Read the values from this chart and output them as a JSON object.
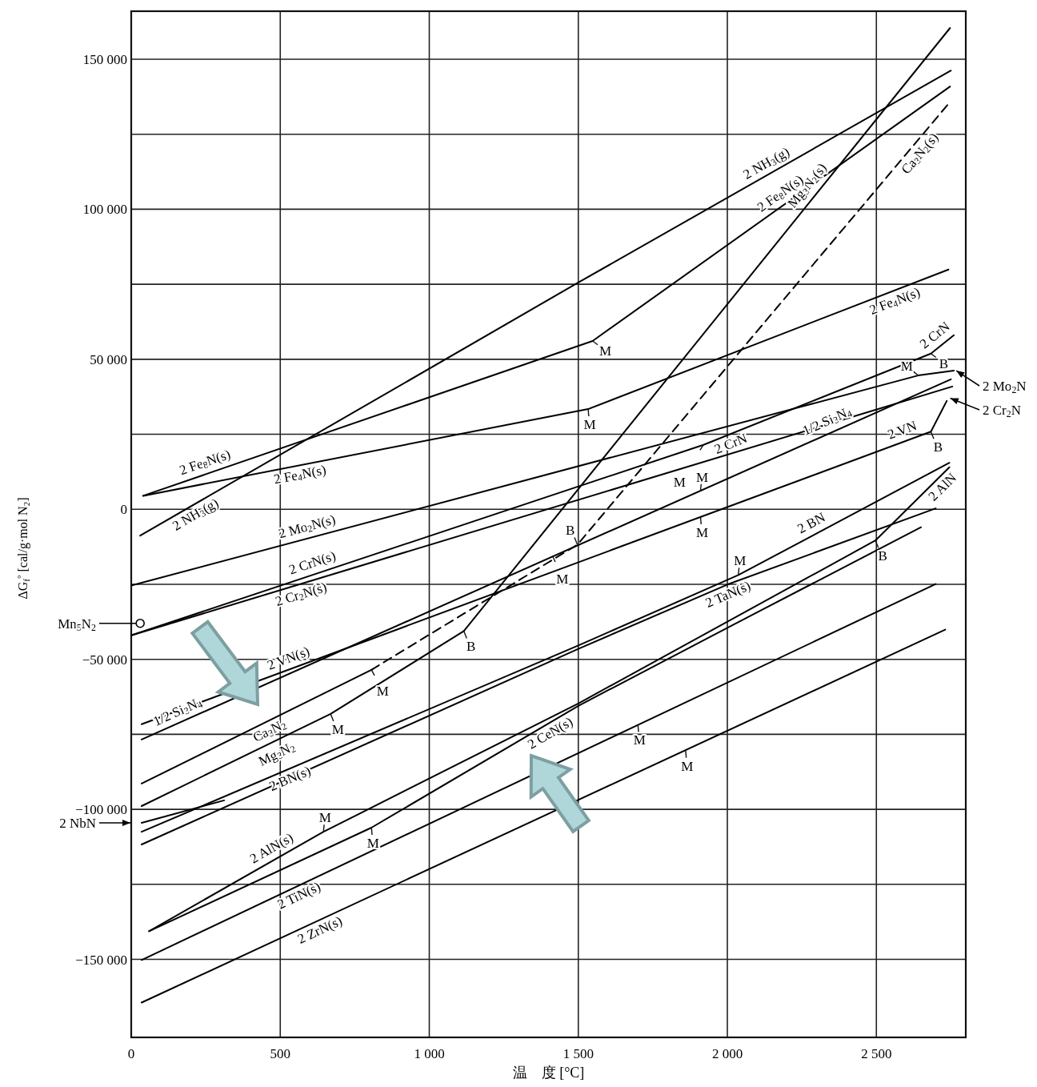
{
  "chart_data": {
    "type": "line",
    "xlabel": "温　度 [°C]",
    "ylabel": "ΔG$_{f}$$^{°}$ [cal/g·mol N$_{2}$]",
    "xlim": [
      0,
      2800
    ],
    "ylim": [
      -176000,
      166000
    ],
    "xticks": [
      0,
      500,
      {
        "value": 1000,
        "label": "1 000"
      },
      {
        "value": 1500,
        "label": "1 500"
      },
      {
        "value": 2000,
        "label": "2 000"
      },
      {
        "value": 2500,
        "label": "2 500"
      }
    ],
    "yticks": [
      {
        "value": -150000,
        "label": "−150 000"
      },
      {
        "value": -125000,
        "label": null
      },
      {
        "value": -100000,
        "label": "−100 000"
      },
      {
        "value": -75000,
        "label": null
      },
      {
        "value": -50000,
        "label": "−50 000"
      },
      {
        "value": -25000,
        "label": null
      },
      0,
      {
        "value": 25000,
        "label": null
      },
      {
        "value": 50000,
        "label": "50 000"
      },
      {
        "value": 75000,
        "label": null
      },
      {
        "value": 100000,
        "label": "100 000"
      },
      {
        "value": 125000,
        "label": null
      },
      {
        "value": 150000,
        "label": "150 000"
      }
    ],
    "grid": true,
    "legend": "left",
    "series": [
      {
        "name": "2 NH$_{3}$(g)",
        "color": "#000000",
        "x": [
          30,
          1500,
          2750
        ],
        "values": [
          -8800,
          75600,
          146200
        ]
      },
      {
        "name": "2 Fe$_{8}$N(s)",
        "color": "#000000",
        "x": [
          40,
          1548,
          2747
        ],
        "values": [
          4500,
          56100,
          140900
        ]
      },
      {
        "name": "2 Fe$_{4}$N(s)",
        "color": "#000000",
        "x": [
          40,
          1533,
          2742
        ],
        "values": [
          4500,
          33400,
          79900
        ]
      },
      {
        "name": "2 Mo$_{2}$N(s)",
        "color": "#000000",
        "x": [
          0,
          2640,
          2760
        ],
        "values": [
          -25400,
          44600,
          46200
        ]
      },
      {
        "name": "2 CrN(s)",
        "color": "#000000",
        "x": [
          0,
          1920,
          2683,
          2760
        ],
        "values": [
          -42000,
          21500,
          51900,
          58000
        ]
      },
      {
        "name": "2 Cr$_{2}$N(s)",
        "color": "#000000",
        "x": [
          0,
          2755
        ],
        "values": [
          -42000,
          40900
        ]
      },
      {
        "name": "2 VN(s)",
        "color": "#000000",
        "x": [
          35,
          2683,
          2736
        ],
        "values": [
          -71600,
          25900,
          36100
        ]
      },
      {
        "name": "1/2 Si$_{3}$N$_{4}$",
        "color": "#000000",
        "x": [
          35,
          2750
        ],
        "values": [
          -76700,
          43300
        ]
      },
      {
        "name": "Ca$_{3}$N$_{2}$",
        "color": "#000000",
        "x": [
          35,
          806
        ],
        "values": [
          -91400,
          -53500
        ]
      },
      {
        "name": "Ca$_{3}$N$_{2}$(s)",
        "color": "#000000",
        "line_style": "dashed",
        "x": [
          806,
          1497,
          2745
        ],
        "values": [
          -53500,
          -11800,
          135500
        ]
      },
      {
        "name": "Mg$_{3}$N$_{2}$",
        "color": "#000000",
        "x": [
          35,
          669,
          1116
        ],
        "values": [
          -98900,
          -68200,
          -40600
        ]
      },
      {
        "name": "Mg$_{3}$N$_{2}$(s)",
        "color": "#000000",
        "x": [
          1116,
          2747
        ],
        "values": [
          -40600,
          160400
        ]
      },
      {
        "name": "2 NbN",
        "color": "#000000",
        "x": [
          35,
          312
        ],
        "values": [
          -104500,
          -97000
        ]
      },
      {
        "name": "2 BN(s)",
        "color": "#000000",
        "x": [
          35,
          1500,
          2037,
          2745
        ],
        "values": [
          -107500,
          -45400,
          -21900,
          15500
        ]
      },
      {
        "name": "2 TaN(s)",
        "color": "#000000",
        "x": [
          35,
          1500,
          2000,
          2699
        ],
        "values": [
          -111700,
          -46500,
          -25100,
          300
        ]
      },
      {
        "name": "2 AlN(s)",
        "color": "#000000",
        "x": [
          60,
          645,
          1500,
          2497,
          2745
        ],
        "values": [
          -140600,
          -107500,
          -64700,
          -10400,
          14000
        ]
      },
      {
        "name": "2 CeN(s)",
        "color": "#000000",
        "x": [
          60,
          806,
          1500,
          2000,
          2650
        ],
        "values": [
          -140600,
          -106100,
          -65500,
          -39500,
          -6000
        ]
      },
      {
        "name": "2 TiN(s)",
        "color": "#000000",
        "x": [
          35,
          2699
        ],
        "values": [
          -150200,
          -24900
        ]
      },
      {
        "name": "2 ZrN(s)",
        "color": "#000000",
        "x": [
          35,
          2731
        ],
        "values": [
          -164400,
          -40100
        ]
      },
      {
        "name": "Mn$_{5}$N$_{2}$",
        "type": "scatter",
        "marker": "circle",
        "color": "#000000",
        "x": [
          30
        ],
        "values": [
          -38000
        ]
      }
    ],
    "annotations": [
      {
        "text": "M",
        "x": 1548,
        "y": 56100
      },
      {
        "text": "M",
        "x": 1533,
        "y": 33400
      },
      {
        "text": "M",
        "x": 1920,
        "y": 21500
      },
      {
        "text": "B",
        "x": 2683,
        "y": 51900
      },
      {
        "text": "M",
        "x": 2640,
        "y": 44600
      },
      {
        "text": "B",
        "x": 2683,
        "y": 25900
      },
      {
        "text": "M",
        "x": 806,
        "y": -53500
      },
      {
        "text": "B",
        "x": 1497,
        "y": -11800
      },
      {
        "text": "M",
        "x": 669,
        "y": -68200
      },
      {
        "text": "B",
        "x": 1116,
        "y": -40600
      },
      {
        "text": "M",
        "x": 1910,
        "y": 6000
      },
      {
        "text": "M",
        "x": 1910,
        "y": -2600
      },
      {
        "text": "M",
        "x": 1414,
        "y": -15600
      },
      {
        "text": "M",
        "x": 2037,
        "y": -21900
      },
      {
        "text": "M",
        "x": 645,
        "y": -107500
      },
      {
        "text": "B",
        "x": 2497,
        "y": -10400
      },
      {
        "text": "M",
        "x": 806,
        "y": -106100
      },
      {
        "text": "M",
        "x": 1700,
        "y": -71800
      },
      {
        "text": "M",
        "x": 1860,
        "y": -80400
      },
      {
        "text": "2 NH$_{3}$(g)",
        "x": 2150,
        "y": 112000
      },
      {
        "text": "2 Fe$_{8}$N(s)",
        "x": 2200,
        "y": 102100
      },
      {
        "text": "2 Fe$_{4}$N(s)",
        "x": 2550,
        "y": 72500
      },
      {
        "text": "2 CrN",
        "x": 2000,
        "y": 24700
      },
      {
        "text": "2 CrN",
        "x": 2720,
        "y": 55000
      },
      {
        "text": "1/2 Si$_{3}$N$_{4}$",
        "x": 2350,
        "y": 25900
      },
      {
        "text": "2 VN",
        "x": 2600,
        "y": 22800
      },
      {
        "text": "2 BN",
        "x": 2300,
        "y": -8000
      },
      {
        "text": "2 AlN",
        "x": 2700,
        "y": 9600
      },
      {
        "text": "2 Mo$_{2}$N",
        "x": 2760,
        "y": 46200
      },
      {
        "text": "2 Cr$_{2}$N",
        "x": 2740,
        "y": 37000
      }
    ]
  }
}
